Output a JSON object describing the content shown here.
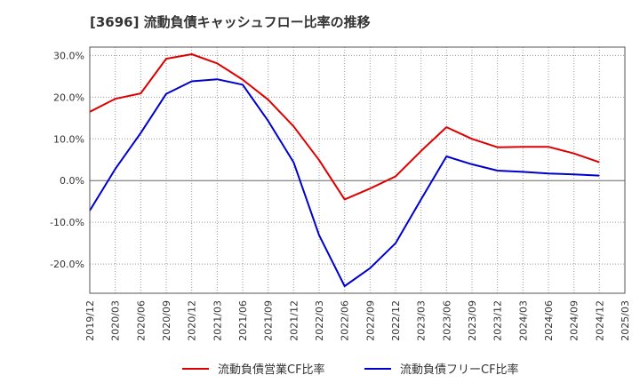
{
  "chart_data": {
    "type": "line",
    "title": "[3696]  流動負債キャッシュフロー比率の推移",
    "xlabel": "",
    "ylabel": "",
    "ylim": [
      -27,
      32
    ],
    "yticks": [
      30,
      20,
      10,
      0,
      -10,
      -20
    ],
    "ytick_labels": [
      "30.0%",
      "20.0%",
      "10.0%",
      "0.0%",
      "-10.0%",
      "-20.0%"
    ],
    "grid": true,
    "legend_position": "bottom",
    "x": [
      "2019/12",
      "2020/03",
      "2020/06",
      "2020/09",
      "2020/12",
      "2021/03",
      "2021/06",
      "2021/09",
      "2021/12",
      "2022/03",
      "2022/06",
      "2022/09",
      "2022/12",
      "2023/03",
      "2023/06",
      "2023/09",
      "2023/12",
      "2024/03",
      "2024/06",
      "2024/09",
      "2024/12",
      "2025/03"
    ],
    "series": [
      {
        "name": "流動負債営業CF比率",
        "color": "#dd0000",
        "values": [
          16.5,
          19.6,
          20.9,
          29.2,
          30.3,
          28.1,
          24.2,
          19.4,
          13.0,
          4.9,
          -4.5,
          -1.9,
          1.0,
          7.1,
          12.8,
          10.0,
          8.0,
          8.1,
          8.1,
          6.5,
          4.4,
          null
        ]
      },
      {
        "name": "流動負債フリーCF比率",
        "color": "#0000cc",
        "values": [
          -7.2,
          2.8,
          11.4,
          20.8,
          23.8,
          24.3,
          23.0,
          14.3,
          4.4,
          -13.1,
          -25.3,
          -21.0,
          -15.0,
          -4.5,
          5.8,
          3.9,
          2.4,
          2.1,
          1.7,
          1.5,
          1.2,
          null
        ]
      }
    ]
  }
}
